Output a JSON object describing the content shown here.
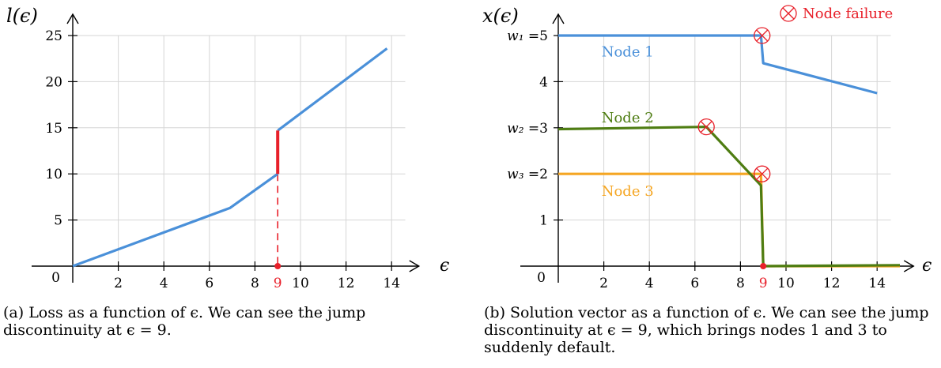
{
  "chart_data": [
    {
      "type": "line",
      "ylabel": "l(ϵ)",
      "xlabel": "ϵ",
      "xlim": [
        0,
        15
      ],
      "ylim": [
        0,
        25
      ],
      "grid": true,
      "origin_label": "0",
      "x_ticks": [
        "2",
        "4",
        "6",
        "8",
        "10",
        "12",
        "14"
      ],
      "y_ticks": [
        "5",
        "10",
        "15",
        "20",
        "25"
      ],
      "highlight_x": "9",
      "series": [
        {
          "segments": [
            [
              [
                0,
                0
              ],
              [
                6.9,
                6.3
              ],
              [
                9,
                10
              ]
            ],
            [
              [
                9,
                14.7
              ],
              [
                13.8,
                23.6
              ]
            ]
          ],
          "color": "#4a90d9"
        }
      ],
      "jump": {
        "x": 9,
        "from": 10,
        "to": 14.7,
        "color": "#e8202a"
      },
      "caption": "(a) Loss as a function of ϵ. We can see the jump discontinuity at ϵ = 9."
    },
    {
      "type": "line",
      "ylabel": "x(ϵ)",
      "xlabel": "ϵ",
      "xlim": [
        0,
        15
      ],
      "ylim": [
        0,
        5
      ],
      "grid": true,
      "origin_label": "0",
      "x_ticks": [
        "2",
        "4",
        "6",
        "8",
        "10",
        "12",
        "14"
      ],
      "y_ticks": [
        "1",
        "2",
        "3",
        "4",
        "5"
      ],
      "y_tick_prefixes": {
        "w1": "w₁ =",
        "w2": "w₂ =",
        "w3": "w₃ ="
      },
      "highlight_x": "9",
      "legend_marker_label": "Node failure",
      "series": [
        {
          "name": "Node 1",
          "color": "#4a90d9",
          "points": [
            [
              0,
              5
            ],
            [
              8.9,
              5
            ],
            [
              9,
              4.4
            ],
            [
              14,
              3.75
            ]
          ]
        },
        {
          "name": "Node 2",
          "color": "#4e7d12",
          "points": [
            [
              0,
              2.97
            ],
            [
              6.5,
              3.02
            ],
            [
              8.9,
              1.75
            ],
            [
              9,
              0
            ],
            [
              15,
              0.02
            ]
          ]
        },
        {
          "name": "Node 3",
          "color": "#f5a623",
          "points": [
            [
              0,
              2
            ],
            [
              8.9,
              2
            ],
            [
              9,
              0
            ],
            [
              15,
              0
            ]
          ]
        }
      ],
      "failures": [
        [
          8.95,
          5
        ],
        [
          6.5,
          3.02
        ],
        [
          8.95,
          2
        ]
      ],
      "caption": "(b) Solution vector as a function of ϵ. We can see the jump discontinuity at ϵ = 9, which brings nodes 1 and 3 to suddenly default."
    }
  ]
}
